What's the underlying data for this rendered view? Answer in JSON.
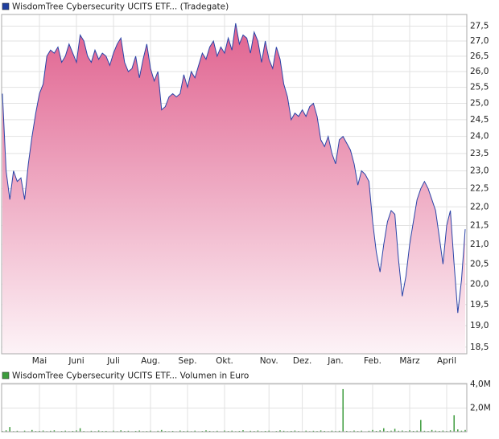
{
  "chart_data": [
    {
      "type": "area",
      "title": "WisdomTree Cybersecurity UCITS ETF... (Tradegate)",
      "categories": [
        null,
        null,
        null,
        null,
        null,
        null,
        null,
        null,
        null,
        null,
        "Mai",
        null,
        null,
        null,
        null,
        null,
        null,
        null,
        null,
        null,
        "Juni",
        null,
        null,
        null,
        null,
        null,
        null,
        null,
        null,
        null,
        "Juli",
        null,
        null,
        null,
        null,
        null,
        null,
        null,
        null,
        null,
        "Aug.",
        null,
        null,
        null,
        null,
        null,
        null,
        null,
        null,
        null,
        "Sep.",
        null,
        null,
        null,
        null,
        null,
        null,
        null,
        null,
        null,
        "Okt.",
        null,
        null,
        null,
        null,
        null,
        null,
        null,
        null,
        null,
        null,
        null,
        "Nov.",
        null,
        null,
        null,
        null,
        null,
        null,
        null,
        null,
        "Dez.",
        null,
        null,
        null,
        null,
        null,
        null,
        null,
        null,
        "Jan.",
        null,
        null,
        null,
        null,
        null,
        null,
        null,
        null,
        null,
        "Feb.",
        null,
        null,
        null,
        null,
        null,
        null,
        null,
        null,
        null,
        "März",
        null,
        null,
        null,
        null,
        null,
        null,
        null,
        null,
        null,
        "April",
        null,
        null,
        null,
        null,
        null
      ],
      "values": [
        25.3,
        23.0,
        22.2,
        23.0,
        22.7,
        22.8,
        22.2,
        23.2,
        24.0,
        24.7,
        25.3,
        25.6,
        26.5,
        26.7,
        26.6,
        26.8,
        26.3,
        26.5,
        26.9,
        26.6,
        26.3,
        27.2,
        27.0,
        26.5,
        26.3,
        26.7,
        26.4,
        26.6,
        26.5,
        26.2,
        26.6,
        26.9,
        27.1,
        26.3,
        26.0,
        26.1,
        26.5,
        25.8,
        26.4,
        26.9,
        26.1,
        25.7,
        26.0,
        24.8,
        24.9,
        25.2,
        25.3,
        25.2,
        25.3,
        25.9,
        25.5,
        26.0,
        25.8,
        26.2,
        26.6,
        26.4,
        26.8,
        27.0,
        26.5,
        26.8,
        26.6,
        27.1,
        26.7,
        27.6,
        26.9,
        27.2,
        27.1,
        26.6,
        27.3,
        27.0,
        26.3,
        27.0,
        26.4,
        26.1,
        26.8,
        26.4,
        25.6,
        25.2,
        24.5,
        24.7,
        24.6,
        24.8,
        24.6,
        24.9,
        25.0,
        24.6,
        23.9,
        23.7,
        24.0,
        23.5,
        23.2,
        23.9,
        24.0,
        23.8,
        23.6,
        23.2,
        22.6,
        23.0,
        22.9,
        22.7,
        21.6,
        20.8,
        20.3,
        21.0,
        21.6,
        21.9,
        21.8,
        20.6,
        19.7,
        20.2,
        21.0,
        21.6,
        22.2,
        22.5,
        22.7,
        22.5,
        22.2,
        21.9,
        21.2,
        20.5,
        21.5,
        21.9,
        20.5,
        19.3,
        20.1,
        21.4
      ],
      "color": "#2a44a8",
      "fill_top": "#e0628f",
      "fill_bottom": "#fdf3f7",
      "legend_color": "#1f3f9f",
      "log_scale": true,
      "ylim": [
        18.35,
        27.9
      ],
      "yticks": [
        {
          "value": 18.5,
          "label": "18,5"
        },
        {
          "value": 19,
          "label": "19,0"
        },
        {
          "value": 19.5,
          "label": "19,5"
        },
        {
          "value": 20,
          "label": "20,0"
        },
        {
          "value": 20.5,
          "label": "20,5"
        },
        {
          "value": 21,
          "label": "21,0"
        },
        {
          "value": 21.5,
          "label": "21,5"
        },
        {
          "value": 22,
          "label": "22,0"
        },
        {
          "value": 22.5,
          "label": "22,5"
        },
        {
          "value": 23,
          "label": "23,0"
        },
        {
          "value": 23.5,
          "label": "23,5"
        },
        {
          "value": 24,
          "label": "24,0"
        },
        {
          "value": 24.5,
          "label": "24,5"
        },
        {
          "value": 25,
          "label": "25,0"
        },
        {
          "value": 25.5,
          "label": "25,5"
        },
        {
          "value": 26,
          "label": "26,0"
        },
        {
          "value": 26.5,
          "label": "26,5"
        },
        {
          "value": 27,
          "label": "27,0"
        },
        {
          "value": 27.5,
          "label": "27,5"
        }
      ],
      "grid": true
    },
    {
      "type": "bar",
      "title": "WisdomTree Cybersecurity UCITS ETF... Volumen in Euro",
      "values": [
        60000,
        120000,
        400000,
        50000,
        80000,
        30000,
        90000,
        40000,
        150000,
        60000,
        70000,
        100000,
        50000,
        80000,
        120000,
        40000,
        60000,
        90000,
        50000,
        70000,
        110000,
        300000,
        60000,
        40000,
        80000,
        50000,
        100000,
        60000,
        70000,
        40000,
        90000,
        50000,
        120000,
        60000,
        80000,
        40000,
        70000,
        100000,
        50000,
        60000,
        90000,
        40000,
        80000,
        150000,
        60000,
        50000,
        70000,
        40000,
        100000,
        60000,
        80000,
        50000,
        90000,
        40000,
        60000,
        120000,
        70000,
        50000,
        80000,
        40000,
        100000,
        60000,
        90000,
        50000,
        70000,
        130000,
        40000,
        80000,
        60000,
        100000,
        50000,
        70000,
        90000,
        40000,
        60000,
        120000,
        80000,
        50000,
        70000,
        100000,
        60000,
        40000,
        90000,
        50000,
        80000,
        60000,
        110000,
        70000,
        50000,
        90000,
        60000,
        80000,
        3600000,
        70000,
        50000,
        100000,
        60000,
        90000,
        40000,
        80000,
        150000,
        70000,
        120000,
        300000,
        60000,
        90000,
        250000,
        80000,
        100000,
        60000,
        120000,
        70000,
        90000,
        1000000,
        80000,
        60000,
        150000,
        90000,
        70000,
        100000,
        60000,
        120000,
        1400000,
        200000,
        90000,
        150000
      ],
      "color": "#3c9c3c",
      "ylim": [
        0,
        4070000
      ],
      "yticks": [
        {
          "value": 2000000,
          "label": "2,0M"
        },
        {
          "value": 4000000,
          "label": "4,0M"
        }
      ],
      "grid": true
    }
  ]
}
